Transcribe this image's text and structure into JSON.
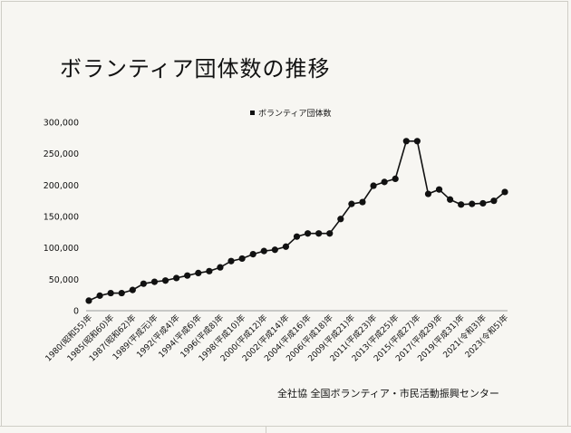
{
  "title": "ボランティア団体数の推移",
  "source": "全社協 全国ボランティア・市民活動振興センター",
  "chart_data": {
    "type": "line",
    "title": "ボランティア団体数の推移",
    "legend": [
      "ボランティア団体数"
    ],
    "legend_position": "top-center",
    "ylim": [
      0,
      300000
    ],
    "yticks": [
      0,
      50000,
      100000,
      150000,
      200000,
      250000,
      300000
    ],
    "ytick_labels": [
      "0",
      "50,000",
      "100,000",
      "150,000",
      "200,000",
      "250,000",
      "300,000"
    ],
    "xtick_labels": [
      "1980(昭和55)年",
      "1985(昭和60)年",
      "1987(昭和62)年",
      "1989(平成元)年",
      "1992(平成4)年",
      "1994(平成6)年",
      "1996(平成8)年",
      "1998(平成10)年",
      "2000(平成12)年",
      "2002(平成14)年",
      "2004(平成16)年",
      "2006(平成18)年",
      "2009(平成21)年",
      "2011(平成23)年",
      "2013(平成25)年",
      "2015(平成27)年",
      "2017(平成29)年",
      "2019(平成31)年",
      "2021(令和3)年",
      "2023(令和5)年"
    ],
    "grid": false,
    "series": [
      {
        "name": "ボランティア団体数",
        "values": [
          16000,
          24000,
          28000,
          28000,
          33000,
          43000,
          46000,
          48000,
          52000,
          56000,
          60000,
          63000,
          69000,
          79000,
          83000,
          90000,
          95000,
          97000,
          102000,
          118000,
          123000,
          123000,
          123000,
          146000,
          170000,
          173000,
          199000,
          205000,
          210000,
          270000,
          270000,
          186000,
          193000,
          177000,
          169000,
          170000,
          171000,
          175000,
          189000
        ]
      }
    ]
  }
}
